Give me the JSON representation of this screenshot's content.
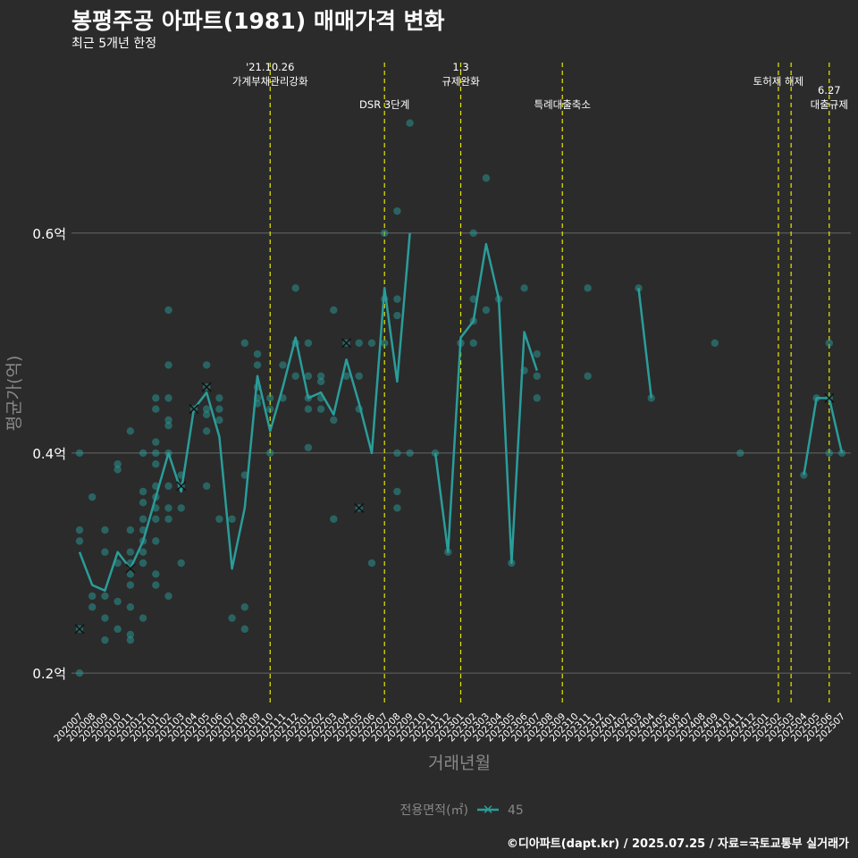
{
  "title": "봉평주공 아파트(1981) 매매가격 변화",
  "subtitle": "최근 5개년 한정",
  "caption": "©디아파트(dapt.kr) / 2025.07.25 / 자료=국토교통부 실거래가",
  "colors": {
    "background": "#2b2b2b",
    "series": "#2a9d9a",
    "event": "#e6e600",
    "grid": "#666666",
    "text": "#ffffff",
    "muted": "#888888"
  },
  "chart_data": {
    "type": "line",
    "title": "봉평주공 아파트(1981) 매매가격 변화",
    "xlabel": "거래년월",
    "ylabel": "평균가(억)",
    "ylim": [
      0.17,
      0.755
    ],
    "yticks": [
      0.2,
      0.4,
      0.6
    ],
    "ytick_labels": [
      "0.2억",
      "0.4억",
      "0.6억"
    ],
    "categories": [
      "202007",
      "202008",
      "202009",
      "202010",
      "202011",
      "202012",
      "202101",
      "202102",
      "202103",
      "202104",
      "202105",
      "202106",
      "202107",
      "202108",
      "202109",
      "202110",
      "202111",
      "202112",
      "202201",
      "202202",
      "202203",
      "202204",
      "202205",
      "202206",
      "202207",
      "202208",
      "202209",
      "202210",
      "202211",
      "202212",
      "202301",
      "202302",
      "202303",
      "202304",
      "202305",
      "202306",
      "202307",
      "202308",
      "202309",
      "202310",
      "202311",
      "202312",
      "202401",
      "202402",
      "202403",
      "202404",
      "202405",
      "202406",
      "202407",
      "202408",
      "202409",
      "202410",
      "202411",
      "202412",
      "202501",
      "202502",
      "202503",
      "202504",
      "202505",
      "202506",
      "202507"
    ],
    "legend": {
      "title": "전용면적(㎡)",
      "entries": [
        "45"
      ],
      "position": "bottom"
    },
    "series": [
      {
        "name": "45",
        "values": [
          0.31,
          0.28,
          0.275,
          0.31,
          0.295,
          0.32,
          0.36,
          0.4,
          0.365,
          0.44,
          0.455,
          0.415,
          0.295,
          0.35,
          0.47,
          0.42,
          0.46,
          0.505,
          0.45,
          0.455,
          0.435,
          0.485,
          0.445,
          0.4,
          0.55,
          0.465,
          0.6,
          null,
          0.4,
          0.31,
          0.505,
          0.52,
          0.59,
          0.54,
          0.3,
          0.51,
          0.475,
          null,
          null,
          null,
          null,
          null,
          null,
          null,
          0.55,
          0.45,
          null,
          null,
          null,
          null,
          null,
          null,
          null,
          null,
          null,
          null,
          null,
          0.38,
          0.45,
          0.45,
          0.4
        ]
      }
    ],
    "scatter": [
      [
        "202007",
        0.24
      ],
      [
        "202007",
        0.2
      ],
      [
        "202007",
        0.33
      ],
      [
        "202007",
        0.32
      ],
      [
        "202007",
        0.4
      ],
      [
        "202008",
        0.26
      ],
      [
        "202008",
        0.36
      ],
      [
        "202008",
        0.27
      ],
      [
        "202009",
        0.25
      ],
      [
        "202009",
        0.23
      ],
      [
        "202009",
        0.27
      ],
      [
        "202009",
        0.33
      ],
      [
        "202009",
        0.31
      ],
      [
        "202010",
        0.3
      ],
      [
        "202010",
        0.39
      ],
      [
        "202010",
        0.385
      ],
      [
        "202010",
        0.265
      ],
      [
        "202010",
        0.24
      ],
      [
        "202011",
        0.42
      ],
      [
        "202011",
        0.33
      ],
      [
        "202011",
        0.31
      ],
      [
        "202011",
        0.3
      ],
      [
        "202011",
        0.29
      ],
      [
        "202011",
        0.28
      ],
      [
        "202011",
        0.26
      ],
      [
        "202011",
        0.235
      ],
      [
        "202011",
        0.23
      ],
      [
        "202012",
        0.4
      ],
      [
        "202012",
        0.365
      ],
      [
        "202012",
        0.355
      ],
      [
        "202012",
        0.34
      ],
      [
        "202012",
        0.33
      ],
      [
        "202012",
        0.32
      ],
      [
        "202012",
        0.31
      ],
      [
        "202012",
        0.3
      ],
      [
        "202012",
        0.25
      ],
      [
        "202101",
        0.45
      ],
      [
        "202101",
        0.44
      ],
      [
        "202101",
        0.41
      ],
      [
        "202101",
        0.4
      ],
      [
        "202101",
        0.39
      ],
      [
        "202101",
        0.37
      ],
      [
        "202101",
        0.36
      ],
      [
        "202101",
        0.35
      ],
      [
        "202101",
        0.34
      ],
      [
        "202101",
        0.32
      ],
      [
        "202101",
        0.29
      ],
      [
        "202101",
        0.28
      ],
      [
        "202102",
        0.53
      ],
      [
        "202102",
        0.48
      ],
      [
        "202102",
        0.45
      ],
      [
        "202102",
        0.43
      ],
      [
        "202102",
        0.425
      ],
      [
        "202102",
        0.4
      ],
      [
        "202102",
        0.37
      ],
      [
        "202102",
        0.35
      ],
      [
        "202102",
        0.34
      ],
      [
        "202102",
        0.27
      ],
      [
        "202103",
        0.38
      ],
      [
        "202103",
        0.37
      ],
      [
        "202103",
        0.35
      ],
      [
        "202103",
        0.3
      ],
      [
        "202104",
        0.44
      ],
      [
        "202105",
        0.48
      ],
      [
        "202105",
        0.46
      ],
      [
        "202105",
        0.44
      ],
      [
        "202105",
        0.435
      ],
      [
        "202105",
        0.42
      ],
      [
        "202105",
        0.37
      ],
      [
        "202106",
        0.45
      ],
      [
        "202106",
        0.44
      ],
      [
        "202106",
        0.43
      ],
      [
        "202106",
        0.34
      ],
      [
        "202107",
        0.34
      ],
      [
        "202107",
        0.25
      ],
      [
        "202108",
        0.5
      ],
      [
        "202108",
        0.38
      ],
      [
        "202108",
        0.26
      ],
      [
        "202108",
        0.24
      ],
      [
        "202109",
        0.49
      ],
      [
        "202109",
        0.48
      ],
      [
        "202109",
        0.46
      ],
      [
        "202109",
        0.45
      ],
      [
        "202109",
        0.445
      ],
      [
        "202110",
        0.45
      ],
      [
        "202110",
        0.44
      ],
      [
        "202110",
        0.4
      ],
      [
        "202111",
        0.48
      ],
      [
        "202111",
        0.45
      ],
      [
        "202112",
        0.55
      ],
      [
        "202112",
        0.5
      ],
      [
        "202112",
        0.47
      ],
      [
        "202201",
        0.5
      ],
      [
        "202201",
        0.47
      ],
      [
        "202201",
        0.45
      ],
      [
        "202201",
        0.44
      ],
      [
        "202201",
        0.405
      ],
      [
        "202202",
        0.47
      ],
      [
        "202202",
        0.465
      ],
      [
        "202202",
        0.45
      ],
      [
        "202202",
        0.44
      ],
      [
        "202203",
        0.53
      ],
      [
        "202203",
        0.43
      ],
      [
        "202203",
        0.34
      ],
      [
        "202204",
        0.5
      ],
      [
        "202204",
        0.47
      ],
      [
        "202205",
        0.5
      ],
      [
        "202205",
        0.47
      ],
      [
        "202205",
        0.44
      ],
      [
        "202205",
        0.35
      ],
      [
        "202206",
        0.5
      ],
      [
        "202206",
        0.3
      ],
      [
        "202207",
        0.6
      ],
      [
        "202207",
        0.54
      ],
      [
        "202207",
        0.5
      ],
      [
        "202208",
        0.62
      ],
      [
        "202208",
        0.54
      ],
      [
        "202208",
        0.525
      ],
      [
        "202208",
        0.4
      ],
      [
        "202208",
        0.365
      ],
      [
        "202208",
        0.35
      ],
      [
        "202209",
        0.7
      ],
      [
        "202209",
        0.4
      ],
      [
        "202211",
        0.4
      ],
      [
        "202212",
        0.31
      ],
      [
        "202301",
        0.5
      ],
      [
        "202302",
        0.6
      ],
      [
        "202302",
        0.54
      ],
      [
        "202302",
        0.52
      ],
      [
        "202302",
        0.5
      ],
      [
        "202303",
        0.65
      ],
      [
        "202303",
        0.53
      ],
      [
        "202304",
        0.54
      ],
      [
        "202305",
        0.3
      ],
      [
        "202306",
        0.55
      ],
      [
        "202306",
        0.475
      ],
      [
        "202307",
        0.49
      ],
      [
        "202307",
        0.47
      ],
      [
        "202307",
        0.45
      ],
      [
        "202311",
        0.55
      ],
      [
        "202311",
        0.47
      ],
      [
        "202403",
        0.55
      ],
      [
        "202404",
        0.45
      ],
      [
        "202409",
        0.5
      ],
      [
        "202411",
        0.4
      ],
      [
        "202504",
        0.38
      ],
      [
        "202505",
        0.45
      ],
      [
        "202506",
        0.5
      ],
      [
        "202506",
        0.45
      ],
      [
        "202506",
        0.4
      ],
      [
        "202507",
        0.4
      ]
    ],
    "x_markers": [
      [
        "202007",
        0.24
      ],
      [
        "202011",
        0.295
      ],
      [
        "202103",
        0.37
      ],
      [
        "202104",
        0.44
      ],
      [
        "202105",
        0.46
      ],
      [
        "202204",
        0.5
      ],
      [
        "202205",
        0.35
      ],
      [
        "202506",
        0.45
      ]
    ],
    "events": [
      {
        "x": "202110",
        "lines": [
          "'21.10.26",
          "가계부채관리강화"
        ],
        "row": 0
      },
      {
        "x": "202207",
        "lines": [
          "DSR 3단계"
        ],
        "row": 1
      },
      {
        "x": "202301",
        "lines": [
          "1.3",
          "규제완화"
        ],
        "row": 0
      },
      {
        "x": "202309",
        "lines": [
          "특례대출축소"
        ],
        "row": 1
      },
      {
        "x": "202502",
        "lines": [
          "토허제 해제"
        ],
        "row": 0
      },
      {
        "x": "202503",
        "lines": [],
        "row": 0
      },
      {
        "x": "202506",
        "lines": [
          "6.27",
          "대출규제"
        ],
        "row": 1
      }
    ]
  }
}
